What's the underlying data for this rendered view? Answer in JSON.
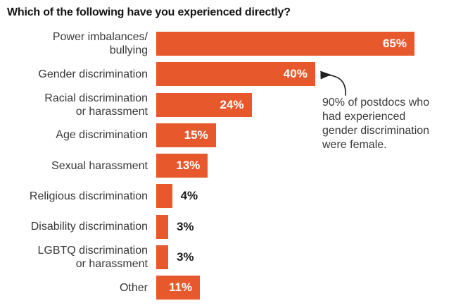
{
  "title": "Which of the following have you experienced directly?",
  "colors": {
    "bar": "#E7592C",
    "value_inside": "#FFFFFF",
    "value_outside": "#1A1A1A",
    "label": "#383838",
    "title": "#141414",
    "annotation_text": "#3A3A3A",
    "arrow": "#222222"
  },
  "chart_data": {
    "type": "bar",
    "orientation": "horizontal",
    "title": "Which of the following have you experienced directly?",
    "categories": [
      "Power imbalances/ bullying",
      "Gender discrimination",
      "Racial discrimination or harassment",
      "Age discrimination",
      "Sexual harassment",
      "Religious discrimination",
      "Disability discrimination",
      "LGBTQ discrimination or harassment",
      "Other"
    ],
    "values": [
      65,
      40,
      24,
      15,
      13,
      4,
      3,
      3,
      11
    ],
    "value_labels": [
      "65%",
      "40%",
      "24%",
      "15%",
      "13%",
      "4%",
      "3%",
      "3%",
      "11%"
    ],
    "xlim": [
      0,
      65
    ],
    "grid": false,
    "legend": "none",
    "annotation": "90% of postdocs who had experienced gender discrimination were female.",
    "annotation_target": "Gender discrimination"
  },
  "rows": [
    {
      "label_lines": [
        "Power imbalances/",
        "bullying"
      ],
      "value": 65,
      "value_label": "65%"
    },
    {
      "label_lines": [
        "Gender discrimination"
      ],
      "value": 40,
      "value_label": "40%"
    },
    {
      "label_lines": [
        "Racial discrimination",
        "or harassment"
      ],
      "value": 24,
      "value_label": "24%"
    },
    {
      "label_lines": [
        "Age discrimination"
      ],
      "value": 15,
      "value_label": "15%"
    },
    {
      "label_lines": [
        "Sexual harassment"
      ],
      "value": 13,
      "value_label": "13%"
    },
    {
      "label_lines": [
        "Religious discrimination"
      ],
      "value": 4,
      "value_label": "4%"
    },
    {
      "label_lines": [
        "Disability discrimination"
      ],
      "value": 3,
      "value_label": "3%"
    },
    {
      "label_lines": [
        "LGBTQ discrimination",
        "or harassment"
      ],
      "value": 3,
      "value_label": "3%"
    },
    {
      "label_lines": [
        "Other"
      ],
      "value": 11,
      "value_label": "11%"
    }
  ],
  "annotation": {
    "lines": [
      "90% of postdocs who",
      "had experienced",
      "gender discrimination",
      "were female."
    ]
  }
}
